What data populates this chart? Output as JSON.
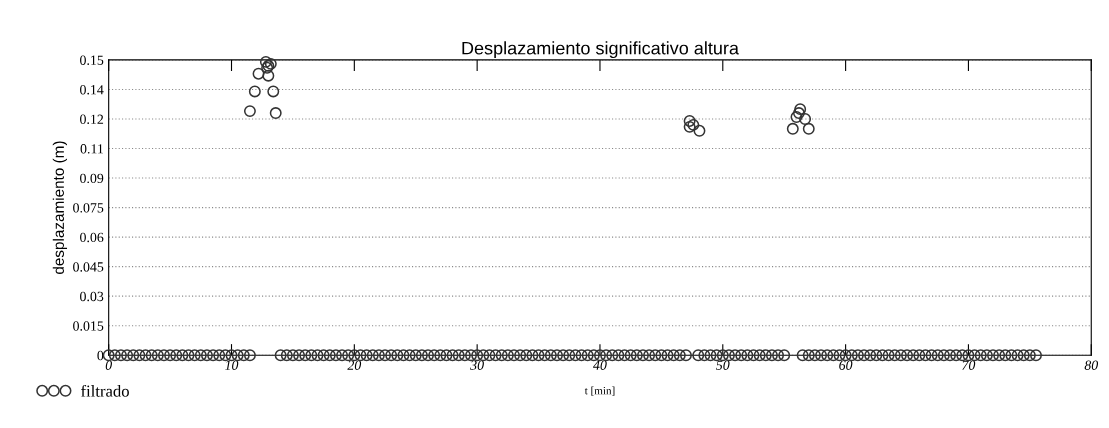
{
  "chart_data": {
    "type": "scatter",
    "title": "Desplazamiento significativo altura",
    "xlabel": "t [min]",
    "ylabel": "desplazamiento (m)",
    "xlim": [
      0,
      80
    ],
    "xticks": [
      0,
      10,
      20,
      30,
      40,
      50,
      60,
      70,
      80
    ],
    "ylim": [
      0,
      0.15
    ],
    "yticks": [
      0,
      0.015,
      0.03,
      0.045,
      0.06,
      0.075,
      0.09,
      {
        "value": 0.105,
        "label": "0.11"
      },
      0.12,
      {
        "value": 0.135,
        "label": "0.14"
      },
      0.15
    ],
    "grid": "y",
    "legend": "bottom left",
    "marker": "circle",
    "series": [
      {
        "name": "filtrado",
        "color": "#333333",
        "x": [
          0,
          0.5,
          1,
          1.5,
          2,
          2.5,
          3,
          3.5,
          4,
          4.5,
          5,
          5.5,
          6,
          6.5,
          7,
          7.5,
          8,
          8.5,
          9,
          9.5,
          10,
          10.5,
          11,
          11.5,
          14,
          14.5,
          15,
          15.5,
          16,
          16.5,
          17,
          17.5,
          18,
          18.5,
          19,
          19.5,
          20,
          20.5,
          21,
          21.5,
          22,
          22.5,
          23,
          23.5,
          24,
          24.5,
          25,
          25.5,
          26,
          26.5,
          27,
          27.5,
          28,
          28.5,
          29,
          29.5,
          30,
          30.5,
          31,
          31.5,
          32,
          32.5,
          33,
          33.5,
          34,
          34.5,
          35,
          35.5,
          36,
          36.5,
          37,
          37.5,
          38,
          38.5,
          39,
          39.5,
          40,
          40.5,
          41,
          41.5,
          42,
          42.5,
          43,
          43.5,
          44,
          44.5,
          45,
          45.5,
          46,
          46.5,
          47,
          48,
          48.5,
          49,
          49.5,
          50,
          50.5,
          51,
          51.5,
          52,
          52.5,
          53,
          53.5,
          54,
          54.5,
          55,
          56.5,
          57,
          57.5,
          58,
          58.5,
          59,
          59.5,
          60,
          60.5,
          61,
          61.5,
          62,
          62.5,
          63,
          63.5,
          64,
          64.5,
          65,
          65.5,
          66,
          66.5,
          67,
          67.5,
          68,
          68.5,
          69,
          69.5,
          70,
          70.5,
          71,
          71.5,
          72,
          72.5,
          73,
          73.5,
          74,
          74.5,
          75,
          75.5,
          11.5,
          13.6,
          11.9,
          13.4,
          12.2,
          13.0,
          13.0,
          12.8,
          13.2,
          12.9,
          47.3,
          47.6,
          48.1,
          47.3,
          56.2,
          56.7,
          55.7,
          57.0,
          56.3,
          56.0
        ],
        "values": [
          0,
          0,
          0,
          0,
          0,
          0,
          0,
          0,
          0,
          0,
          0,
          0,
          0,
          0,
          0,
          0,
          0,
          0,
          0,
          0,
          0,
          0,
          0,
          0,
          0,
          0,
          0,
          0,
          0,
          0,
          0,
          0,
          0,
          0,
          0,
          0,
          0,
          0,
          0,
          0,
          0,
          0,
          0,
          0,
          0,
          0,
          0,
          0,
          0,
          0,
          0,
          0,
          0,
          0,
          0,
          0,
          0,
          0,
          0,
          0,
          0,
          0,
          0,
          0,
          0,
          0,
          0,
          0,
          0,
          0,
          0,
          0,
          0,
          0,
          0,
          0,
          0,
          0,
          0,
          0,
          0,
          0,
          0,
          0,
          0,
          0,
          0,
          0,
          0,
          0,
          0,
          0,
          0,
          0,
          0,
          0,
          0,
          0,
          0,
          0,
          0,
          0,
          0,
          0,
          0,
          0,
          0,
          0,
          0,
          0,
          0,
          0,
          0,
          0,
          0,
          0,
          0,
          0,
          0,
          0,
          0,
          0,
          0,
          0,
          0,
          0,
          0,
          0,
          0,
          0,
          0,
          0,
          0,
          0,
          0,
          0,
          0,
          0,
          0,
          0,
          0,
          0,
          0,
          0,
          0,
          0.124,
          0.123,
          0.134,
          0.134,
          0.143,
          0.142,
          0.147,
          0.149,
          0.148,
          0.146,
          0.119,
          0.117,
          0.114,
          0.116,
          0.123,
          0.12,
          0.115,
          0.115,
          0.125,
          0.121
        ]
      }
    ]
  }
}
